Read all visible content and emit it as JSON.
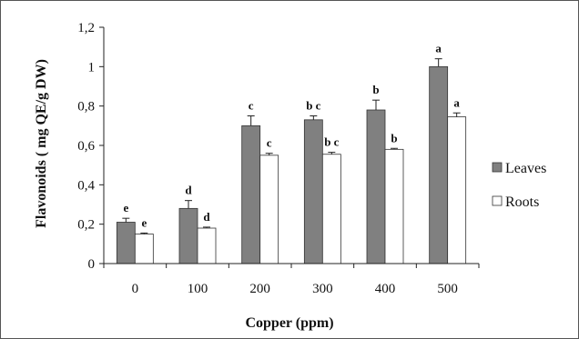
{
  "chart_data": {
    "type": "bar",
    "categories": [
      "0",
      "100",
      "200",
      "300",
      "400",
      "500"
    ],
    "series": [
      {
        "name": "Leaves",
        "color": "#808080",
        "values": [
          0.21,
          0.28,
          0.7,
          0.73,
          0.78,
          1.0
        ],
        "errors": [
          0.02,
          0.04,
          0.05,
          0.02,
          0.05,
          0.04
        ],
        "labels": [
          "e",
          "d",
          "c",
          "b c",
          "b",
          "a"
        ]
      },
      {
        "name": "Roots",
        "color": "#ffffff",
        "values": [
          0.15,
          0.18,
          0.55,
          0.555,
          0.58,
          0.745
        ],
        "errors": [
          0.005,
          0.005,
          0.01,
          0.01,
          0.005,
          0.02
        ],
        "labels": [
          "e",
          "d",
          "c",
          "b c",
          "b",
          "a"
        ]
      }
    ],
    "title": "",
    "xlabel": "Copper (ppm)",
    "ylabel": "Flavonoids ( mg QE/g DW)",
    "ylim": [
      0,
      1.2
    ],
    "yticks": [
      "0",
      "0,2",
      "0,4",
      "0,6",
      "0,8",
      "1",
      "1,2"
    ],
    "grid": false,
    "legend": "right"
  }
}
